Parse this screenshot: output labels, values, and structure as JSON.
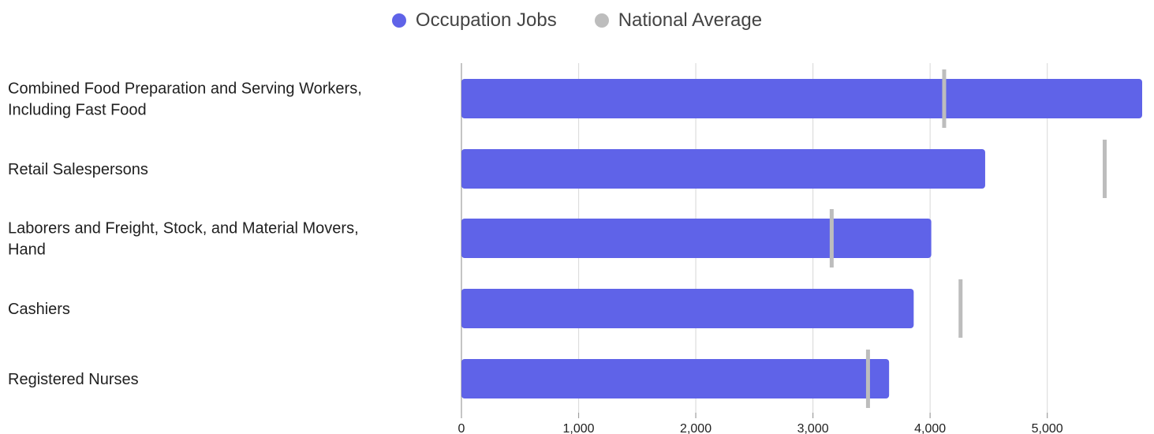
{
  "chart_data": {
    "type": "bar",
    "orientation": "horizontal",
    "categories": [
      [
        "Combined Food Preparation and Serving Workers,",
        "Including Fast Food"
      ],
      [
        "Retail Salespersons"
      ],
      [
        "Laborers and Freight, Stock, and Material Movers,",
        "Hand"
      ],
      [
        "Cashiers"
      ],
      [
        "Registered Nurses"
      ]
    ],
    "series": [
      {
        "name": "Occupation Jobs",
        "color": "#5f63e8",
        "marker": "bar",
        "values": [
          5810,
          4470,
          4010,
          3860,
          3650
        ]
      },
      {
        "name": "National Average",
        "color": "#bdbdbd",
        "marker": "line",
        "values": [
          4120,
          5490,
          3160,
          4260,
          3470
        ]
      }
    ],
    "x_ticks": [
      "0",
      "1,000",
      "2,000",
      "3,000",
      "4,000",
      "5,000"
    ],
    "xlim": [
      0,
      5810
    ],
    "grid": true,
    "legend_position": "top-center"
  }
}
